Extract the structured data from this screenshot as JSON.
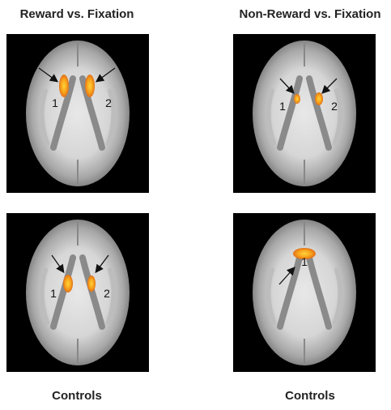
{
  "titles": [
    "Reward vs. Fixation",
    "Non-Reward vs. Fixation"
  ],
  "panels": [
    {
      "labels": [
        "1",
        "2"
      ]
    },
    {
      "labels": [
        "1",
        "2"
      ]
    },
    {
      "labels": [
        "1",
        "2"
      ]
    },
    {
      "labels": [
        "1"
      ]
    }
  ],
  "footers": [
    "Controls",
    "Controls"
  ]
}
